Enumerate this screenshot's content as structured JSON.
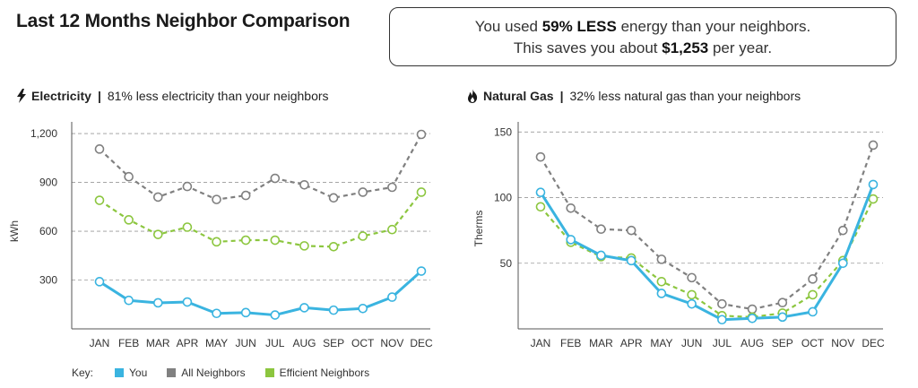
{
  "header": {
    "title": "Last 12 Months Neighbor Comparison"
  },
  "summary": {
    "line1_pre": "You used ",
    "line1_bold": "59% LESS",
    "line1_post": " energy than your neighbors.",
    "line2_pre": "This saves you about ",
    "line2_bold": "$1,253",
    "line2_post": " per year."
  },
  "sections": {
    "electricity": {
      "name": "Electricity",
      "icon": "lightning-icon",
      "desc": "81% less electricity than your neighbors"
    },
    "gas": {
      "name": "Natural Gas",
      "icon": "flame-icon",
      "desc": "32% less natural gas than your neighbors"
    }
  },
  "key": {
    "label": "Key:",
    "items": [
      {
        "name": "You",
        "color": "#3ab4e0"
      },
      {
        "name": "All Neighbors",
        "color": "#808080"
      },
      {
        "name": "Efficient Neighbors",
        "color": "#8cc63f"
      }
    ]
  },
  "chart_data": [
    {
      "type": "line",
      "title": "",
      "xlabel": "",
      "ylabel": "kWh",
      "ylim": [
        0,
        1250
      ],
      "yticks": [
        300,
        600,
        900,
        1200
      ],
      "ytick_labels": [
        "300",
        "600",
        "900",
        "1,200"
      ],
      "categories": [
        "JAN",
        "FEB",
        "MAR",
        "APR",
        "MAY",
        "JUN",
        "JUL",
        "AUG",
        "SEP",
        "OCT",
        "NOV",
        "DEC"
      ],
      "grid": true,
      "series": [
        {
          "name": "You",
          "color": "#3ab4e0",
          "style": "solid",
          "values": [
            290,
            175,
            160,
            165,
            95,
            100,
            85,
            130,
            115,
            125,
            195,
            355
          ]
        },
        {
          "name": "All Neighbors",
          "color": "#808080",
          "style": "dashed",
          "values": [
            1105,
            935,
            810,
            875,
            795,
            820,
            925,
            885,
            805,
            840,
            870,
            1195
          ]
        },
        {
          "name": "Efficient Neighbors",
          "color": "#8cc63f",
          "style": "dashed",
          "values": [
            790,
            670,
            580,
            625,
            535,
            545,
            545,
            510,
            505,
            570,
            610,
            840
          ]
        }
      ]
    },
    {
      "type": "line",
      "title": "",
      "xlabel": "",
      "ylabel": "Therms",
      "ylim": [
        0,
        155
      ],
      "yticks": [
        50,
        100,
        150
      ],
      "ytick_labels": [
        "50",
        "100",
        "150"
      ],
      "categories": [
        "JAN",
        "FEB",
        "MAR",
        "APR",
        "MAY",
        "JUN",
        "JUL",
        "AUG",
        "SEP",
        "OCT",
        "NOV",
        "DEC"
      ],
      "grid": true,
      "series": [
        {
          "name": "You",
          "color": "#3ab4e0",
          "style": "solid",
          "values": [
            104,
            68,
            56,
            52,
            27,
            19,
            7,
            8,
            9,
            13,
            50,
            110
          ]
        },
        {
          "name": "All Neighbors",
          "color": "#808080",
          "style": "dashed",
          "values": [
            131,
            92,
            76,
            75,
            53,
            39,
            19,
            15,
            20,
            38,
            75,
            140
          ]
        },
        {
          "name": "Efficient Neighbors",
          "color": "#8cc63f",
          "style": "dashed",
          "values": [
            93,
            66,
            55,
            54,
            36,
            26,
            10,
            9,
            12,
            26,
            52,
            99
          ]
        }
      ]
    }
  ]
}
